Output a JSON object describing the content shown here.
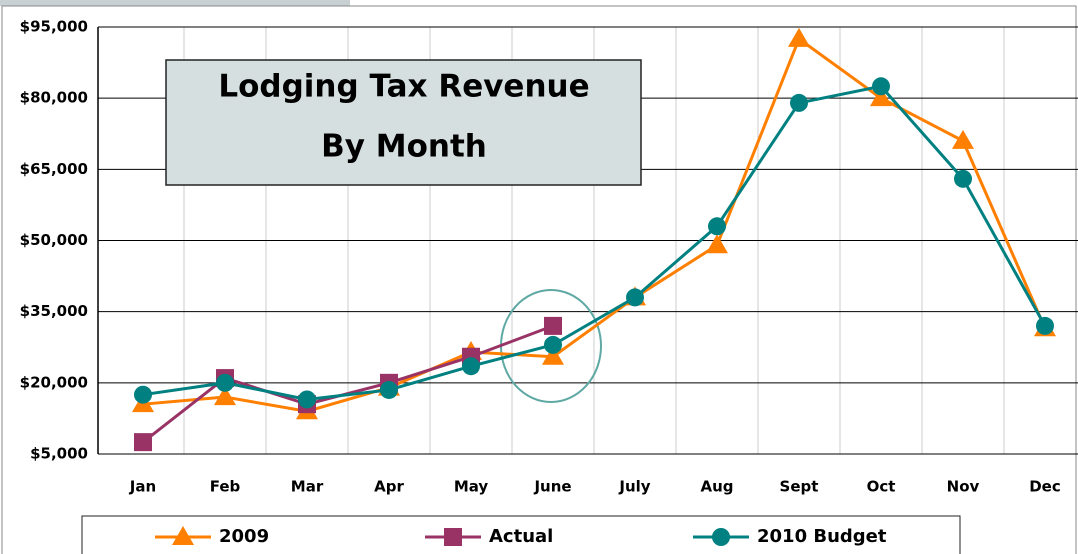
{
  "chart_data": {
    "type": "line",
    "title": [
      "Lodging Tax Revenue",
      "By Month"
    ],
    "categories": [
      "Jan",
      "Feb",
      "Mar",
      "Apr",
      "May",
      "June",
      "July",
      "Aug",
      "Sept",
      "Oct",
      "Nov",
      "Dec"
    ],
    "series": [
      {
        "name": "2009",
        "color": "#ff7f00",
        "marker": "triangle",
        "values": [
          15500,
          17000,
          14000,
          19000,
          26500,
          25500,
          38000,
          49000,
          92500,
          80000,
          71000,
          31500
        ]
      },
      {
        "name": "Actual",
        "color": "#993366",
        "marker": "square",
        "values": [
          7500,
          21000,
          15500,
          20000,
          25500,
          32000,
          null,
          null,
          null,
          null,
          null,
          null
        ]
      },
      {
        "name": "2010 Budget",
        "color": "#008080",
        "marker": "circle",
        "values": [
          17500,
          20000,
          16500,
          18500,
          23500,
          28000,
          38000,
          53000,
          79000,
          82500,
          63000,
          32000
        ]
      }
    ],
    "ylim": [
      5000,
      95000
    ],
    "yticks": [
      {
        "value": 5000,
        "label": "$5,000"
      },
      {
        "value": 20000,
        "label": "$20,000"
      },
      {
        "value": 35000,
        "label": "$35,000"
      },
      {
        "value": 50000,
        "label": "$50,000"
      },
      {
        "value": 65000,
        "label": "$65,000"
      },
      {
        "value": 80000,
        "label": "$80,000"
      },
      {
        "value": 95000,
        "label": "$95,000"
      }
    ],
    "grid": true,
    "legend": "bottom"
  }
}
